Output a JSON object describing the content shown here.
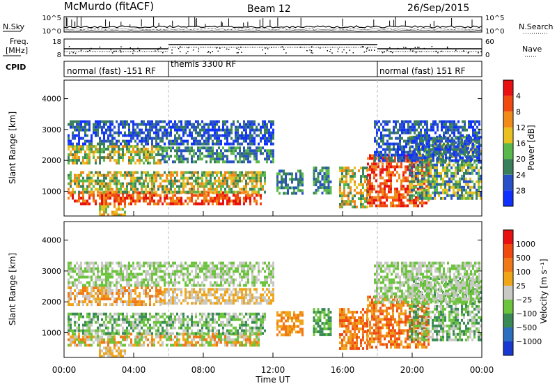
{
  "header": {
    "station": "McMurdo (fitACF)",
    "beam": "Beam 12",
    "date": "26/Sep/2015"
  },
  "status_panels": {
    "nsky_label": "N.Sky",
    "nsearch_label": "N.Search",
    "freq_label_1": "Freq.",
    "freq_label_2": "[MHz]",
    "nave_label": "Nave",
    "cpid_label": "CPID",
    "noise_ticks": [
      "10^5",
      "10^0"
    ],
    "freq_ticks": [
      "18",
      "8"
    ],
    "nave_ticks": [
      "60",
      "0"
    ],
    "cpid_segments": [
      {
        "label": "normal (fast) -151 RF",
        "start_h": 0,
        "end_h": 6
      },
      {
        "label": "themis 3300 RF",
        "start_h": 6,
        "end_h": 18
      },
      {
        "label": "normal (fast) 151 RF",
        "start_h": 18,
        "end_h": 24
      }
    ]
  },
  "chart_data": [
    {
      "type": "heatmap",
      "name": "power",
      "ylabel": "Slant Range [km]",
      "colorbar_label": "Power [dB]",
      "x_range_h": [
        0,
        24
      ],
      "ylim": [
        200,
        4600
      ],
      "y_ticks": [
        "1000",
        "2000",
        "3000",
        "4000"
      ],
      "colorbar_ticks": [
        "4",
        "8",
        "12",
        "16",
        "20",
        "24",
        "28"
      ],
      "colorbar_colors": [
        "#1030ff",
        "#2850c8",
        "#3a7f5c",
        "#58b84a",
        "#e8c020",
        "#f08a18",
        "#f04a10",
        "#e81010"
      ]
    },
    {
      "type": "heatmap",
      "name": "velocity",
      "ylabel": "Slant Range [km]",
      "colorbar_label": "Velocity [m s⁻¹]",
      "x_range_h": [
        0,
        24
      ],
      "ylim": [
        200,
        4600
      ],
      "y_ticks": [
        "1000",
        "2000",
        "3000",
        "4000"
      ],
      "colorbar_ticks": [
        "1000",
        "500",
        "100",
        "25",
        "−25",
        "−100",
        "−500",
        "−1000"
      ],
      "colorbar_colors": [
        "#1838d0",
        "#2c6ec0",
        "#3a8a55",
        "#6cc43c",
        "#c8c8c4",
        "#f0a418",
        "#f07818",
        "#f04a10",
        "#e81010"
      ]
    }
  ],
  "x_axis": {
    "label": "Time UT",
    "ticks": [
      "00:00",
      "04:00",
      "08:00",
      "12:00",
      "16:00",
      "20:00",
      "00:00"
    ]
  }
}
